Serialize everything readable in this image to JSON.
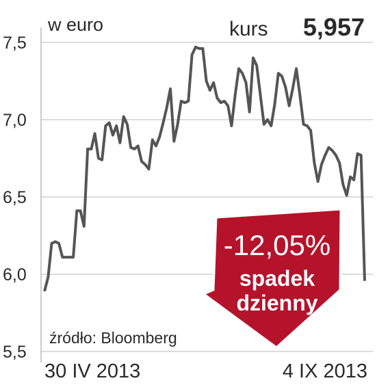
{
  "chart_data": {
    "type": "line",
    "unit": "w euro",
    "last_label": "kurs",
    "source": "źródło: Bloomberg",
    "annotation": "-12,05%",
    "annotation_lines": [
      "spadek",
      "dzienny"
    ],
    "categories": [
      "30 IV 2013",
      null,
      null,
      null,
      null,
      null,
      null,
      null,
      null,
      null,
      null,
      null,
      null,
      null,
      null,
      null,
      null,
      null,
      null,
      null,
      null,
      null,
      null,
      null,
      null,
      null,
      null,
      null,
      null,
      null,
      null,
      null,
      null,
      null,
      null,
      null,
      null,
      null,
      null,
      null,
      null,
      null,
      null,
      null,
      null,
      null,
      null,
      null,
      null,
      null,
      null,
      null,
      null,
      null,
      null,
      null,
      null,
      null,
      null,
      null,
      null,
      null,
      null,
      null,
      null,
      null,
      null,
      null,
      null,
      null,
      null,
      null,
      null,
      null,
      null,
      null,
      null,
      null,
      null,
      null,
      null,
      null,
      null,
      null,
      null,
      null,
      null,
      null,
      null,
      "4 IX 2013"
    ],
    "values": [
      5.89,
      5.98,
      6.2,
      6.21,
      6.2,
      6.11,
      6.11,
      6.11,
      6.11,
      6.41,
      6.41,
      6.31,
      6.81,
      6.81,
      6.91,
      6.75,
      6.74,
      6.96,
      6.98,
      6.9,
      6.96,
      6.85,
      7.02,
      6.97,
      6.82,
      6.81,
      6.83,
      6.73,
      6.71,
      6.68,
      6.87,
      6.83,
      6.89,
      6.98,
      7.08,
      7.2,
      6.86,
      6.97,
      7.12,
      7.11,
      7.12,
      7.42,
      7.47,
      7.46,
      7.46,
      7.25,
      7.19,
      7.24,
      7.14,
      7.11,
      7.12,
      7.09,
      6.96,
      7.16,
      7.33,
      7.3,
      7.24,
      7.05,
      7.4,
      7.35,
      7.16,
      6.97,
      7.0,
      6.96,
      7.1,
      7.3,
      7.28,
      7.21,
      7.09,
      7.2,
      7.33,
      7.16,
      6.97,
      6.96,
      6.93,
      6.72,
      6.6,
      6.71,
      6.77,
      6.82,
      6.8,
      6.77,
      6.72,
      6.58,
      6.51,
      6.63,
      6.61,
      6.78,
      6.77,
      5.957
    ],
    "value_labels": [
      null,
      null,
      null,
      null,
      null,
      null,
      null,
      null,
      null,
      null,
      null,
      null,
      null,
      null,
      null,
      null,
      null,
      null,
      null,
      null,
      null,
      null,
      null,
      null,
      null,
      null,
      null,
      null,
      null,
      null,
      null,
      null,
      null,
      null,
      null,
      null,
      null,
      null,
      null,
      null,
      null,
      null,
      null,
      null,
      null,
      null,
      null,
      null,
      null,
      null,
      null,
      null,
      null,
      null,
      null,
      null,
      null,
      null,
      null,
      null,
      null,
      null,
      null,
      null,
      null,
      null,
      null,
      null,
      null,
      null,
      null,
      null,
      null,
      null,
      null,
      null,
      null,
      null,
      null,
      null,
      null,
      null,
      null,
      null,
      null,
      null,
      null,
      null,
      null,
      "5,957"
    ],
    "color": "#555555",
    "annotation_color": "#b5132b",
    "ylim": [
      5.5,
      7.5
    ],
    "yticks": [
      {
        "value": 5.5,
        "label": "5,5"
      },
      {
        "value": 6.0,
        "label": "6,0"
      },
      {
        "value": 6.5,
        "label": "6,5"
      },
      {
        "value": 7.0,
        "label": "7,0"
      },
      {
        "value": 7.5,
        "label": "7,5"
      }
    ],
    "grid": true
  }
}
